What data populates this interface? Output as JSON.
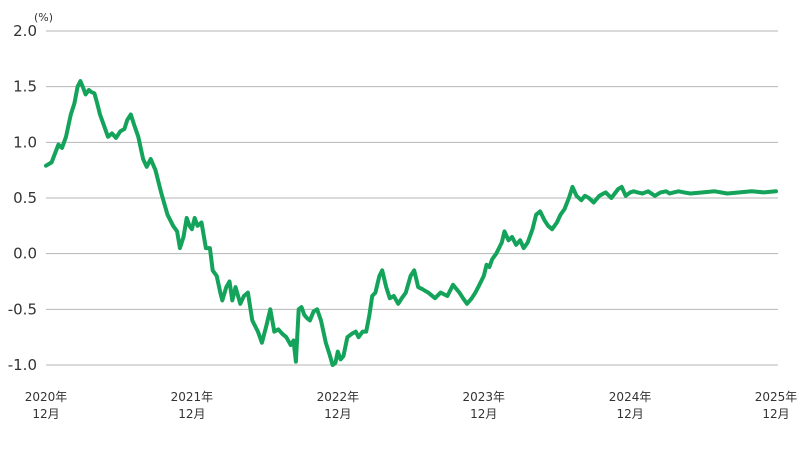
{
  "chart_data": {
    "type": "line",
    "unit_label": "(%)",
    "ylim": [
      -1.0,
      2.0
    ],
    "yticks": [
      {
        "value": 2.0,
        "label": "2.0"
      },
      {
        "value": 1.5,
        "label": "1.5"
      },
      {
        "value": 1.0,
        "label": "1.0"
      },
      {
        "value": 0.5,
        "label": "0.5"
      },
      {
        "value": 0.0,
        "label": "0.0"
      },
      {
        "value": -0.5,
        "label": "-0.5"
      },
      {
        "value": -1.0,
        "label": "-1.0"
      }
    ],
    "xlim": [
      "2020-12",
      "2025-12"
    ],
    "xticks": [
      {
        "value": "2020-12",
        "line1": "2020年",
        "line2": "12月"
      },
      {
        "value": "2021-12",
        "line1": "2021年",
        "line2": "12月"
      },
      {
        "value": "2022-12",
        "line1": "2022年",
        "line2": "12月"
      },
      {
        "value": "2023-12",
        "line1": "2023年",
        "line2": "12月"
      },
      {
        "value": "2024-12",
        "line1": "2024年",
        "line2": "12月"
      },
      {
        "value": "2025-12",
        "line1": "2025年",
        "line2": "12月"
      }
    ],
    "grid": "horizontal",
    "legend": "none",
    "series": [
      {
        "color": "#14a35a",
        "points": [
          [
            "2020-12-01",
            0.79
          ],
          [
            "2020-12-15",
            0.82
          ],
          [
            "2021-01-01",
            0.98
          ],
          [
            "2021-01-10",
            0.95
          ],
          [
            "2021-01-20",
            1.05
          ],
          [
            "2021-02-01",
            1.25
          ],
          [
            "2021-02-10",
            1.35
          ],
          [
            "2021-02-18",
            1.5
          ],
          [
            "2021-02-25",
            1.55
          ],
          [
            "2021-03-05",
            1.48
          ],
          [
            "2021-03-10",
            1.43
          ],
          [
            "2021-03-18",
            1.47
          ],
          [
            "2021-03-25",
            1.45
          ],
          [
            "2021-04-01",
            1.44
          ],
          [
            "2021-04-08",
            1.35
          ],
          [
            "2021-04-15",
            1.25
          ],
          [
            "2021-04-25",
            1.15
          ],
          [
            "2021-05-05",
            1.05
          ],
          [
            "2021-05-15",
            1.08
          ],
          [
            "2021-05-25",
            1.04
          ],
          [
            "2021-06-05",
            1.1
          ],
          [
            "2021-06-15",
            1.12
          ],
          [
            "2021-06-22",
            1.2
          ],
          [
            "2021-07-01",
            1.25
          ],
          [
            "2021-07-10",
            1.15
          ],
          [
            "2021-07-20",
            1.05
          ],
          [
            "2021-08-01",
            0.85
          ],
          [
            "2021-08-10",
            0.78
          ],
          [
            "2021-08-20",
            0.85
          ],
          [
            "2021-09-01",
            0.75
          ],
          [
            "2021-09-15",
            0.55
          ],
          [
            "2021-10-01",
            0.35
          ],
          [
            "2021-10-15",
            0.25
          ],
          [
            "2021-10-25",
            0.2
          ],
          [
            "2021-11-01",
            0.05
          ],
          [
            "2021-11-10",
            0.15
          ],
          [
            "2021-11-18",
            0.32
          ],
          [
            "2021-11-25",
            0.25
          ],
          [
            "2021-12-01",
            0.22
          ],
          [
            "2021-12-08",
            0.32
          ],
          [
            "2021-12-15",
            0.25
          ],
          [
            "2021-12-25",
            0.28
          ],
          [
            "2022-01-05",
            0.05
          ],
          [
            "2022-01-15",
            0.05
          ],
          [
            "2022-01-22",
            -0.15
          ],
          [
            "2022-02-01",
            -0.2
          ],
          [
            "2022-02-10",
            -0.35
          ],
          [
            "2022-02-15",
            -0.42
          ],
          [
            "2022-02-25",
            -0.3
          ],
          [
            "2022-03-05",
            -0.25
          ],
          [
            "2022-03-12",
            -0.42
          ],
          [
            "2022-03-20",
            -0.3
          ],
          [
            "2022-04-01",
            -0.45
          ],
          [
            "2022-04-10",
            -0.38
          ],
          [
            "2022-04-20",
            -0.35
          ],
          [
            "2022-05-01",
            -0.6
          ],
          [
            "2022-05-15",
            -0.7
          ],
          [
            "2022-05-25",
            -0.8
          ],
          [
            "2022-06-05",
            -0.65
          ],
          [
            "2022-06-15",
            -0.5
          ],
          [
            "2022-06-25",
            -0.7
          ],
          [
            "2022-07-05",
            -0.68
          ],
          [
            "2022-07-15",
            -0.72
          ],
          [
            "2022-07-25",
            -0.75
          ],
          [
            "2022-08-05",
            -0.82
          ],
          [
            "2022-08-12",
            -0.78
          ],
          [
            "2022-08-18",
            -0.97
          ],
          [
            "2022-08-25",
            -0.5
          ],
          [
            "2022-09-01",
            -0.48
          ],
          [
            "2022-09-08",
            -0.55
          ],
          [
            "2022-09-15",
            -0.58
          ],
          [
            "2022-09-22",
            -0.6
          ],
          [
            "2022-10-01",
            -0.52
          ],
          [
            "2022-10-10",
            -0.5
          ],
          [
            "2022-10-20",
            -0.6
          ],
          [
            "2022-11-01",
            -0.8
          ],
          [
            "2022-11-10",
            -0.9
          ],
          [
            "2022-11-18",
            -1.0
          ],
          [
            "2022-11-25",
            -0.98
          ],
          [
            "2022-12-01",
            -0.88
          ],
          [
            "2022-12-08",
            -0.95
          ],
          [
            "2022-12-15",
            -0.92
          ],
          [
            "2022-12-25",
            -0.75
          ],
          [
            "2023-01-05",
            -0.72
          ],
          [
            "2023-01-15",
            -0.7
          ],
          [
            "2023-01-22",
            -0.75
          ],
          [
            "2023-02-01",
            -0.7
          ],
          [
            "2023-02-10",
            -0.7
          ],
          [
            "2023-02-18",
            -0.55
          ],
          [
            "2023-02-25",
            -0.38
          ],
          [
            "2023-03-05",
            -0.35
          ],
          [
            "2023-03-15",
            -0.2
          ],
          [
            "2023-03-22",
            -0.15
          ],
          [
            "2023-04-01",
            -0.3
          ],
          [
            "2023-04-10",
            -0.4
          ],
          [
            "2023-04-20",
            -0.38
          ],
          [
            "2023-05-01",
            -0.45
          ],
          [
            "2023-05-10",
            -0.4
          ],
          [
            "2023-05-20",
            -0.35
          ],
          [
            "2023-06-01",
            -0.2
          ],
          [
            "2023-06-10",
            -0.15
          ],
          [
            "2023-06-20",
            -0.3
          ],
          [
            "2023-07-01",
            -0.32
          ],
          [
            "2023-07-15",
            -0.35
          ],
          [
            "2023-08-01",
            -0.4
          ],
          [
            "2023-08-15",
            -0.35
          ],
          [
            "2023-09-01",
            -0.38
          ],
          [
            "2023-09-15",
            -0.28
          ],
          [
            "2023-10-01",
            -0.35
          ],
          [
            "2023-10-10",
            -0.4
          ],
          [
            "2023-10-20",
            -0.45
          ],
          [
            "2023-11-01",
            -0.4
          ],
          [
            "2023-11-10",
            -0.35
          ],
          [
            "2023-11-20",
            -0.28
          ],
          [
            "2023-12-01",
            -0.2
          ],
          [
            "2023-12-08",
            -0.1
          ],
          [
            "2023-12-15",
            -0.12
          ],
          [
            "2023-12-22",
            -0.05
          ],
          [
            "2024-01-01",
            0.0
          ],
          [
            "2024-01-08",
            0.05
          ],
          [
            "2024-01-15",
            0.1
          ],
          [
            "2024-01-22",
            0.2
          ],
          [
            "2024-02-01",
            0.12
          ],
          [
            "2024-02-10",
            0.15
          ],
          [
            "2024-02-20",
            0.08
          ],
          [
            "2024-03-01",
            0.12
          ],
          [
            "2024-03-10",
            0.05
          ],
          [
            "2024-03-20",
            0.1
          ],
          [
            "2024-04-01",
            0.22
          ],
          [
            "2024-04-10",
            0.35
          ],
          [
            "2024-04-20",
            0.38
          ],
          [
            "2024-05-01",
            0.3
          ],
          [
            "2024-05-10",
            0.25
          ],
          [
            "2024-05-20",
            0.22
          ],
          [
            "2024-06-01",
            0.28
          ],
          [
            "2024-06-10",
            0.35
          ],
          [
            "2024-06-20",
            0.4
          ],
          [
            "2024-07-01",
            0.5
          ],
          [
            "2024-07-10",
            0.6
          ],
          [
            "2024-07-20",
            0.52
          ],
          [
            "2024-08-01",
            0.48
          ],
          [
            "2024-08-10",
            0.52
          ],
          [
            "2024-08-20",
            0.5
          ],
          [
            "2024-09-01",
            0.46
          ],
          [
            "2024-09-15",
            0.52
          ],
          [
            "2024-10-01",
            0.55
          ],
          [
            "2024-10-15",
            0.5
          ],
          [
            "2024-11-01",
            0.58
          ],
          [
            "2024-11-10",
            0.6
          ],
          [
            "2024-11-20",
            0.52
          ],
          [
            "2024-12-01",
            0.55
          ],
          [
            "2024-12-10",
            0.56
          ],
          [
            "2024-12-20",
            0.55
          ],
          [
            "2025-01-01",
            0.54
          ],
          [
            "2025-01-15",
            0.56
          ],
          [
            "2025-02-01",
            0.52
          ],
          [
            "2025-02-15",
            0.55
          ],
          [
            "2025-03-01",
            0.56
          ],
          [
            "2025-03-10",
            0.54
          ],
          [
            "2025-03-20",
            0.55
          ],
          [
            "2025-04-01",
            0.56
          ],
          [
            "2025-04-15",
            0.55
          ],
          [
            "2025-05-01",
            0.54
          ],
          [
            "2025-06-01",
            0.55
          ],
          [
            "2025-07-01",
            0.56
          ],
          [
            "2025-08-01",
            0.54
          ],
          [
            "2025-09-01",
            0.55
          ],
          [
            "2025-10-01",
            0.56
          ],
          [
            "2025-11-01",
            0.55
          ],
          [
            "2025-12-01",
            0.56
          ]
        ]
      }
    ]
  }
}
